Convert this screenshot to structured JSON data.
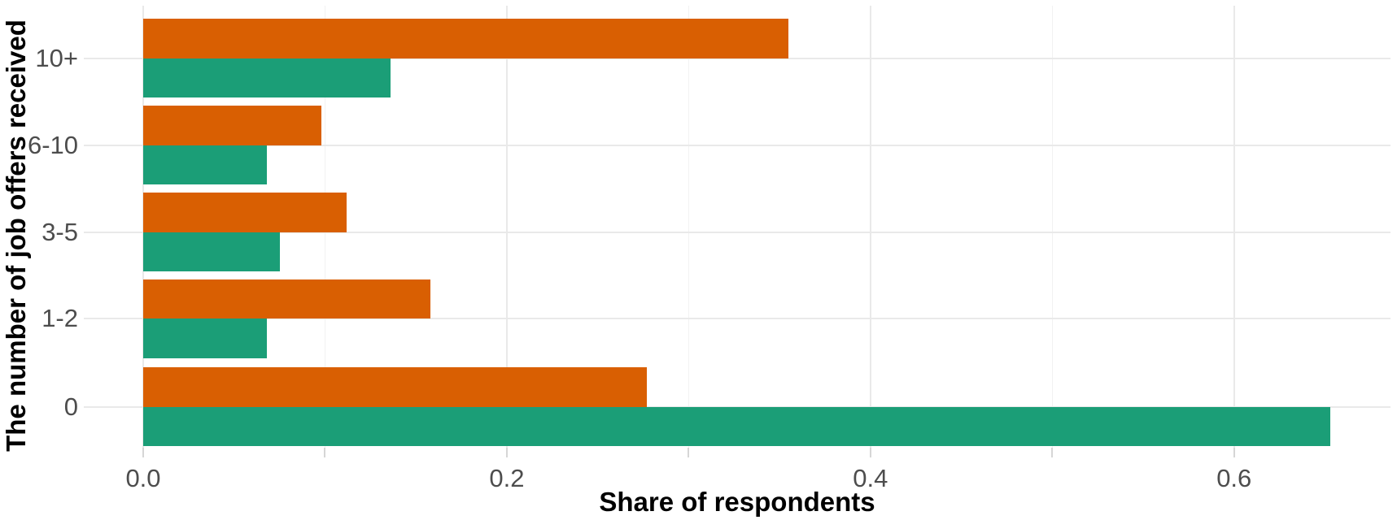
{
  "chart_data": {
    "type": "bar",
    "orientation": "horizontal",
    "title": "",
    "xlabel": "Share of respondents",
    "ylabel": "The number of job offers received",
    "categories": [
      "10+",
      "6-10",
      "3-5",
      "1-2",
      "0"
    ],
    "series": [
      {
        "name": "orange-series",
        "color": "#D95F02",
        "values": [
          0.355,
          0.098,
          0.112,
          0.158,
          0.277
        ]
      },
      {
        "name": "green-series",
        "color": "#1B9E77",
        "values": [
          0.136,
          0.068,
          0.075,
          0.068,
          0.653
        ]
      }
    ],
    "x_major_ticks": [
      0,
      0.2,
      0.4,
      0.6
    ],
    "x_tick_labels": [
      "0.0",
      "0.2",
      "0.4",
      "0.6"
    ],
    "x_minor_ticks": [
      0.1,
      0.3,
      0.5
    ],
    "x_axis_ticks": [
      0,
      0.1,
      0.2,
      0.3,
      0.4,
      0.5,
      0.6
    ],
    "xlim": [
      -0.033,
      0.686
    ],
    "grid": "major+minor",
    "legend_position": "none"
  },
  "colors": {
    "bar_orange": "#D95F02",
    "bar_green": "#1B9E77",
    "grid_major": "#E9E9E9",
    "grid_minor": "#F2F2F2",
    "tick": "#D6D6D6",
    "axis_text": "#4D4D4D",
    "axis_title": "#000000",
    "background": "#FFFFFF"
  }
}
